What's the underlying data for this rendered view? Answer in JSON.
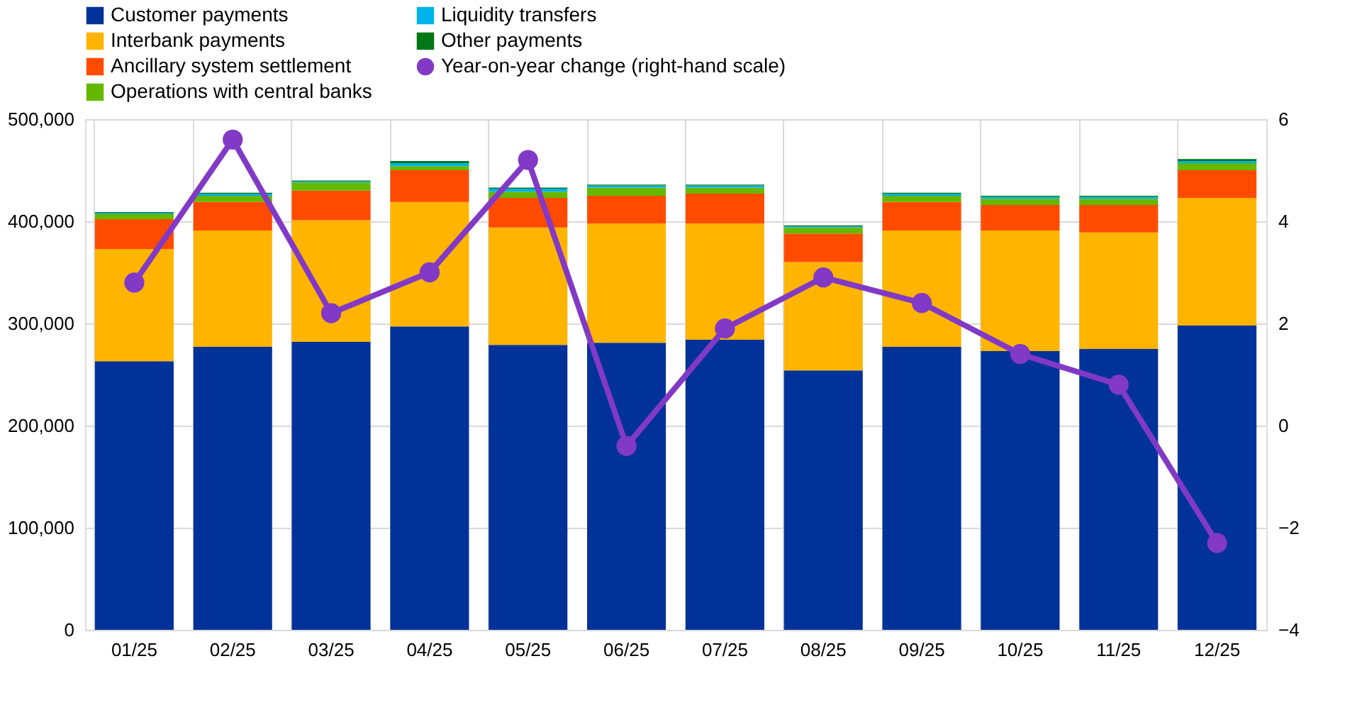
{
  "chart_data": {
    "type": "bar",
    "stacked": true,
    "categories": [
      "01/25",
      "02/25",
      "03/25",
      "04/25",
      "05/25",
      "06/25",
      "07/25",
      "08/25",
      "09/25",
      "10/25",
      "11/25",
      "12/25"
    ],
    "series": [
      {
        "name": "Customer payments",
        "color": "#003299",
        "values": [
          263000,
          277000,
          282000,
          297000,
          279000,
          281000,
          284000,
          254000,
          277000,
          273000,
          275000,
          298000
        ]
      },
      {
        "name": "Interbank payments",
        "color": "#ffb400",
        "values": [
          110000,
          114000,
          119000,
          122000,
          115000,
          117000,
          114000,
          106000,
          114000,
          118000,
          114000,
          125000
        ]
      },
      {
        "name": "Ancillary system settlement",
        "color": "#ff4b00",
        "values": [
          29000,
          28000,
          29000,
          31000,
          29000,
          27000,
          29000,
          28000,
          28000,
          25000,
          27000,
          27000
        ]
      },
      {
        "name": "Operations with central banks",
        "color": "#65b800",
        "values": [
          5000,
          6000,
          8000,
          4000,
          6000,
          8000,
          6000,
          6000,
          6000,
          6000,
          6000,
          7000
        ]
      },
      {
        "name": "Liquidity transfers",
        "color": "#00b1ea",
        "values": [
          1000,
          2000,
          1000,
          3000,
          3000,
          2000,
          2000,
          1000,
          2000,
          2000,
          2000,
          2000
        ]
      },
      {
        "name": "Other payments",
        "color": "#007816",
        "values": [
          1000,
          1000,
          1000,
          2000,
          1000,
          1000,
          1000,
          1000,
          1000,
          1000,
          1000,
          2000
        ]
      },
      {
        "name": "Year-on-year change (right-hand scale)",
        "color": "#8139c6",
        "type": "line",
        "axis": "y2",
        "marker": "circle",
        "values": [
          2.8,
          5.6,
          2.2,
          3.0,
          5.2,
          -0.4,
          1.9,
          2.9,
          2.4,
          1.4,
          0.8,
          -2.3
        ]
      }
    ],
    "ylim": [
      0,
      500000
    ],
    "yticks": [
      0,
      {
        "value": 100000,
        "label": "100,000"
      },
      {
        "value": 200000,
        "label": "200,000"
      },
      {
        "value": 300000,
        "label": "300,000"
      },
      {
        "value": 400000,
        "label": "400,000"
      },
      {
        "value": 500000,
        "label": "500,000"
      }
    ],
    "y2lim": [
      -4,
      6
    ],
    "y2ticks": [
      -4,
      -2,
      0,
      2,
      4,
      6
    ],
    "grid": true,
    "legend": "top"
  }
}
